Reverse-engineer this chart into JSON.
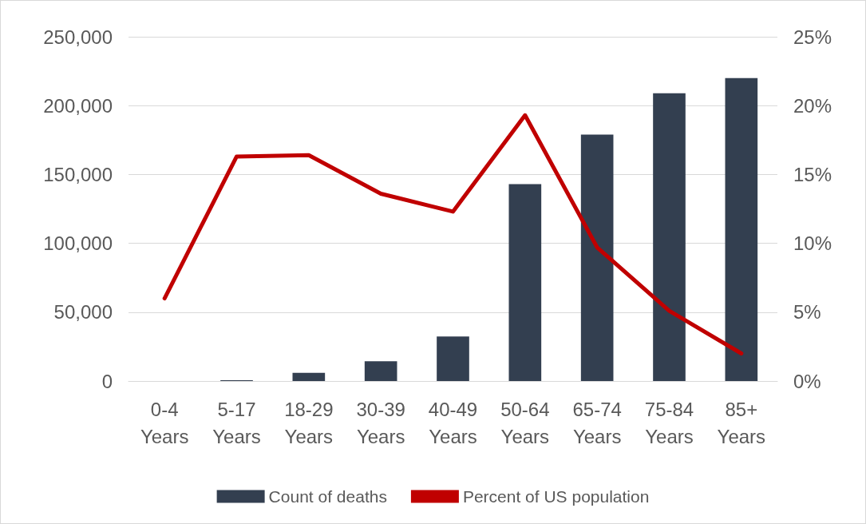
{
  "chart_data": {
    "type": "bar",
    "categories": [
      "0-4\nYears",
      "5-17\nYears",
      "18-29\nYears",
      "30-39\nYears",
      "40-49\nYears",
      "50-64\nYears",
      "65-74\nYears",
      "75-84\nYears",
      "85+\nYears"
    ],
    "series": [
      {
        "name": "Count of deaths",
        "color": "#333f50",
        "values": [
          null,
          600,
          6000,
          14400,
          32300,
          143000,
          179000,
          209000,
          220000
        ]
      },
      {
        "name": "Percent of US population",
        "type": "line",
        "axis": "y2",
        "color": "#c00000",
        "values": [
          6.0,
          16.3,
          16.4,
          13.6,
          12.3,
          19.3,
          9.7,
          5.1,
          2.0
        ]
      }
    ],
    "ylim": [
      0,
      250000
    ],
    "yticks": [
      {
        "value": 0,
        "label": "0"
      },
      {
        "value": 50000,
        "label": "50,000"
      },
      {
        "value": 100000,
        "label": "100,000"
      },
      {
        "value": 150000,
        "label": "150,000"
      },
      {
        "value": 200000,
        "label": "200,000"
      },
      {
        "value": 250000,
        "label": "250,000"
      }
    ],
    "y2lim": [
      0,
      25
    ],
    "y2ticks": [
      {
        "value": 0,
        "label": "0%"
      },
      {
        "value": 5,
        "label": "5%"
      },
      {
        "value": 10,
        "label": "10%"
      },
      {
        "value": 15,
        "label": "15%"
      },
      {
        "value": 20,
        "label": "20%"
      },
      {
        "value": 25,
        "label": "25%"
      }
    ],
    "grid": "y",
    "legend": "bottom",
    "marker": "none",
    "line_style": "solid"
  }
}
